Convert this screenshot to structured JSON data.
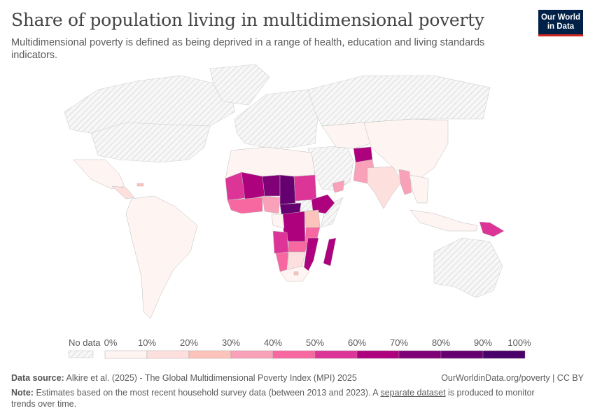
{
  "header": {
    "title": "Share of population living in multidimensional poverty",
    "subtitle": "Multidimensional poverty is defined as being deprived in a range of health, education and living standards indicators.",
    "logo": "Our World in Data"
  },
  "chart_data": {
    "type": "choropleth-map",
    "projection": "world",
    "no_data_label": "No data",
    "no_data_pattern": "hatched-grey",
    "legend_ticks": [
      "0%",
      "10%",
      "20%",
      "30%",
      "40%",
      "50%",
      "60%",
      "70%",
      "80%",
      "90%",
      "100%"
    ],
    "bin_colors": [
      "#fef5f2",
      "#fde0dd",
      "#fcc3bb",
      "#f9a1b8",
      "#f768a1",
      "#dd3497",
      "#ae017e",
      "#7f0077",
      "#660070",
      "#4a006a"
    ],
    "regions": {
      "mexico": 5,
      "central-america": 15,
      "haiti": 25,
      "south-america": 5,
      "north-africa": 3,
      "mauritania": 55,
      "mali": 68,
      "niger": 75,
      "chad": 85,
      "sudan": 55,
      "ethiopia": 68,
      "west-africa-coast": 45,
      "nigeria": 35,
      "car": 85,
      "drc": 65,
      "gabon-congo": 8,
      "angola": 52,
      "kenya": 28,
      "tanzania": 45,
      "zambia": 45,
      "mozambique": 65,
      "namibia": 42,
      "botswana-zimbabwe": 18,
      "south-africa": 5,
      "madagascar": 68,
      "yemen": 35,
      "central-asia": 3,
      "china": 3,
      "afghanistan": 65,
      "pakistan": 38,
      "india": 15,
      "myanmar": 38,
      "southeast-asia": 5,
      "indonesia": 5,
      "papua-new-guinea": 55,
      "eswatini-lesotho": 25
    },
    "no_data_regions": [
      "canada-alaska",
      "usa",
      "greenland",
      "europe",
      "russia",
      "middle-east",
      "australia",
      "somalia",
      "south-sudan"
    ]
  },
  "footer": {
    "source_label": "Data source:",
    "source_text": "Alkire et al. (2025) - The Global Multidimensional Poverty Index (MPI) 2025",
    "url": "OurWorldinData.org/poverty | CC BY",
    "note_label": "Note:",
    "note_text_1": "Estimates based on the most recent household survey data (between 2013 and 2023). A ",
    "note_link": "separate dataset",
    "note_text_2": " is produced to monitor trends over time."
  }
}
